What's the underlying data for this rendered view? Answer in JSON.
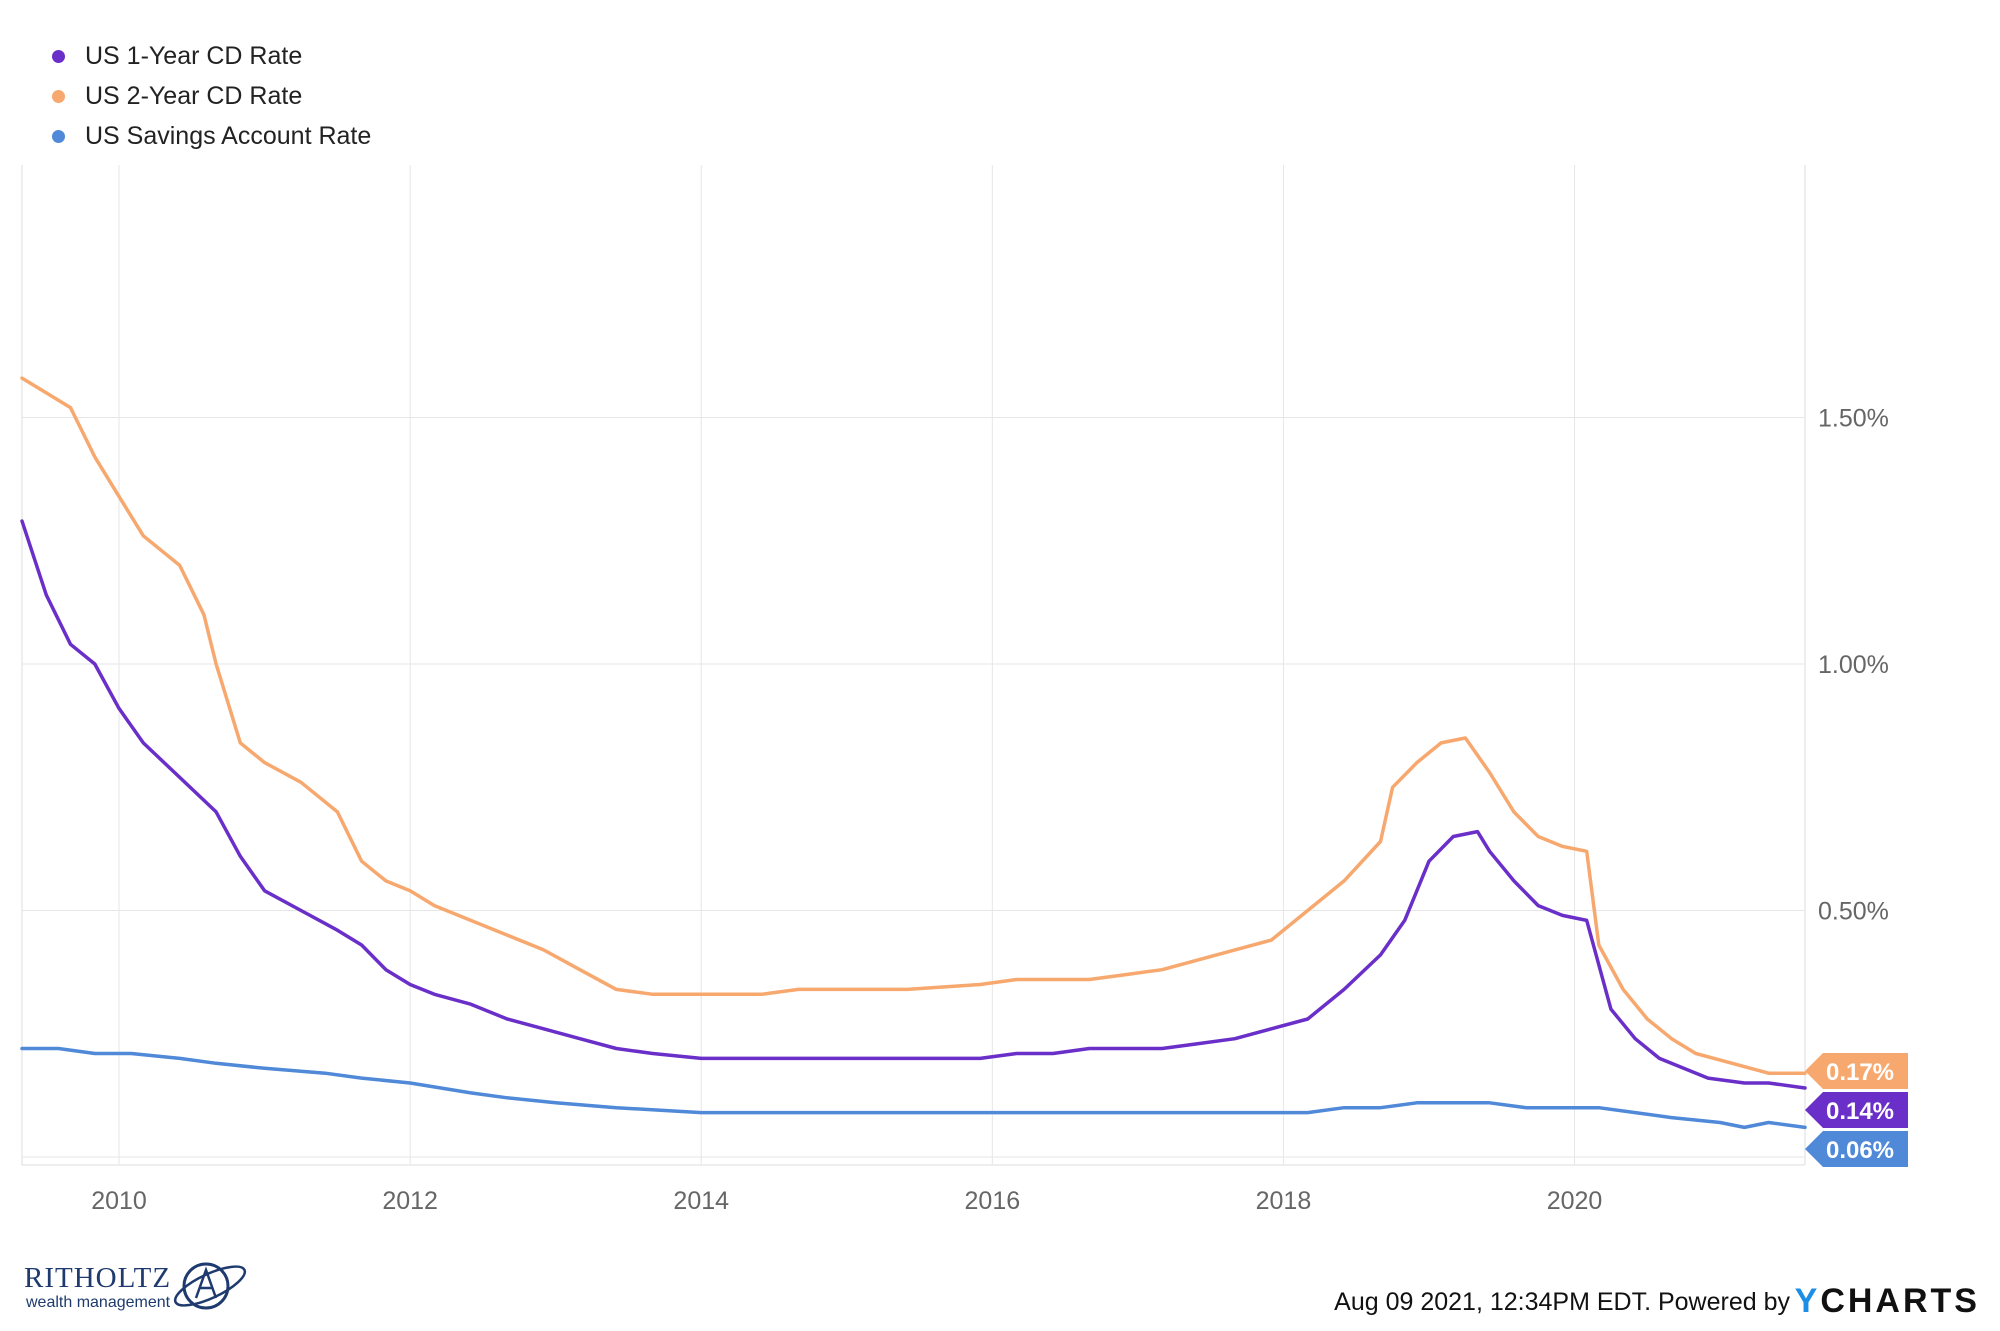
{
  "legend": [
    {
      "label": "US 1-Year CD Rate",
      "color": "#6a2fc8"
    },
    {
      "label": "US 2-Year CD Rate",
      "color": "#f7a86e"
    },
    {
      "label": "US Savings Account Rate",
      "color": "#4f89d8"
    }
  ],
  "footer": {
    "timestamp": "Aug 09 2021, 12:34PM EDT. Powered by",
    "brand_y": "Y",
    "brand_rest": "CHARTS"
  },
  "logo": {
    "name": "RITHOLTZ",
    "subtitle": "wealth management"
  },
  "chart_data": {
    "type": "line",
    "ylim": [
      0,
      2.0
    ],
    "yticks": [
      0.5,
      1.0,
      1.5
    ],
    "ytick_labels": [
      "0.50%",
      "1.00%",
      "1.50%"
    ],
    "xlim": [
      "2009-05",
      "2021-08"
    ],
    "xticks": [
      2010,
      2012,
      2014,
      2016,
      2018,
      2020
    ],
    "xtick_labels": [
      "2010",
      "2012",
      "2014",
      "2016",
      "2018",
      "2020"
    ],
    "grid": true,
    "legend_position": "top-left",
    "end_labels": [
      {
        "series": "US 2-Year CD Rate",
        "text": "0.17%"
      },
      {
        "series": "US 1-Year CD Rate",
        "text": "0.14%"
      },
      {
        "series": "US Savings Account Rate",
        "text": "0.06%"
      }
    ],
    "series": [
      {
        "name": "US 1-Year CD Rate",
        "color": "#6a2fc8",
        "x": [
          "2009-05",
          "2009-07",
          "2009-09",
          "2009-11",
          "2010-01",
          "2010-03",
          "2010-06",
          "2010-09",
          "2010-11",
          "2011-01",
          "2011-04",
          "2011-07",
          "2011-09",
          "2011-11",
          "2012-01",
          "2012-03",
          "2012-06",
          "2012-09",
          "2012-12",
          "2013-03",
          "2013-06",
          "2013-09",
          "2014-01",
          "2014-06",
          "2015-01",
          "2015-06",
          "2015-12",
          "2016-03",
          "2016-06",
          "2016-09",
          "2016-12",
          "2017-03",
          "2017-06",
          "2017-09",
          "2017-12",
          "2018-03",
          "2018-06",
          "2018-09",
          "2018-11",
          "2019-01",
          "2019-03",
          "2019-05",
          "2019-06",
          "2019-08",
          "2019-10",
          "2019-12",
          "2020-02",
          "2020-04",
          "2020-06",
          "2020-08",
          "2020-10",
          "2020-12",
          "2021-03",
          "2021-05",
          "2021-08"
        ],
        "y": [
          1.29,
          1.14,
          1.04,
          1.0,
          0.91,
          0.84,
          0.77,
          0.7,
          0.61,
          0.54,
          0.5,
          0.46,
          0.43,
          0.38,
          0.35,
          0.33,
          0.31,
          0.28,
          0.26,
          0.24,
          0.22,
          0.21,
          0.2,
          0.2,
          0.2,
          0.2,
          0.2,
          0.21,
          0.21,
          0.22,
          0.22,
          0.22,
          0.23,
          0.24,
          0.26,
          0.28,
          0.34,
          0.41,
          0.48,
          0.6,
          0.65,
          0.66,
          0.62,
          0.56,
          0.51,
          0.49,
          0.48,
          0.3,
          0.24,
          0.2,
          0.18,
          0.16,
          0.15,
          0.15,
          0.14
        ]
      },
      {
        "name": "US 2-Year CD Rate",
        "color": "#f7a86e",
        "x": [
          "2009-05",
          "2009-07",
          "2009-09",
          "2009-11",
          "2010-01",
          "2010-03",
          "2010-06",
          "2010-08",
          "2010-09",
          "2010-11",
          "2011-01",
          "2011-04",
          "2011-07",
          "2011-09",
          "2011-11",
          "2012-01",
          "2012-03",
          "2012-06",
          "2012-09",
          "2012-12",
          "2013-03",
          "2013-06",
          "2013-09",
          "2014-01",
          "2014-06",
          "2014-09",
          "2015-06",
          "2015-12",
          "2016-03",
          "2016-06",
          "2016-09",
          "2016-12",
          "2017-03",
          "2017-06",
          "2017-09",
          "2017-12",
          "2018-03",
          "2018-06",
          "2018-09",
          "2018-10",
          "2018-12",
          "2019-02",
          "2019-04",
          "2019-06",
          "2019-08",
          "2019-10",
          "2019-12",
          "2020-02",
          "2020-03",
          "2020-05",
          "2020-07",
          "2020-09",
          "2020-11",
          "2021-02",
          "2021-05",
          "2021-08"
        ],
        "y": [
          1.58,
          1.55,
          1.52,
          1.42,
          1.34,
          1.26,
          1.2,
          1.1,
          1.0,
          0.84,
          0.8,
          0.76,
          0.7,
          0.6,
          0.56,
          0.54,
          0.51,
          0.48,
          0.45,
          0.42,
          0.38,
          0.34,
          0.33,
          0.33,
          0.33,
          0.34,
          0.34,
          0.35,
          0.36,
          0.36,
          0.36,
          0.37,
          0.38,
          0.4,
          0.42,
          0.44,
          0.5,
          0.56,
          0.64,
          0.75,
          0.8,
          0.84,
          0.85,
          0.78,
          0.7,
          0.65,
          0.63,
          0.62,
          0.43,
          0.34,
          0.28,
          0.24,
          0.21,
          0.19,
          0.17,
          0.17
        ]
      },
      {
        "name": "US Savings Account Rate",
        "color": "#4f89d8",
        "x": [
          "2009-05",
          "2009-08",
          "2009-11",
          "2010-02",
          "2010-06",
          "2010-09",
          "2011-01",
          "2011-06",
          "2011-09",
          "2012-01",
          "2012-06",
          "2012-09",
          "2013-01",
          "2013-06",
          "2014-01",
          "2016-01",
          "2018-01",
          "2018-03",
          "2018-06",
          "2018-09",
          "2018-12",
          "2019-03",
          "2019-06",
          "2019-09",
          "2019-12",
          "2020-03",
          "2020-06",
          "2020-09",
          "2021-01",
          "2021-03",
          "2021-05",
          "2021-08"
        ],
        "y": [
          0.22,
          0.22,
          0.21,
          0.21,
          0.2,
          0.19,
          0.18,
          0.17,
          0.16,
          0.15,
          0.13,
          0.12,
          0.11,
          0.1,
          0.09,
          0.09,
          0.09,
          0.09,
          0.1,
          0.1,
          0.11,
          0.11,
          0.11,
          0.1,
          0.1,
          0.1,
          0.09,
          0.08,
          0.07,
          0.06,
          0.07,
          0.06
        ]
      }
    ]
  }
}
